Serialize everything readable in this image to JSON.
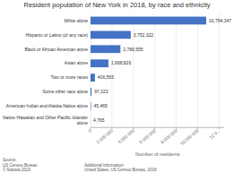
{
  "chart_data": {
    "type": "bar",
    "orientation": "horizontal",
    "title": "Resident population of New York in 2018, by race and ethnicity",
    "categories": [
      "Native Hawaiian and Other Pacific Islander\nalone",
      "American Indian and Alaska Native alone",
      "Some other race alone",
      "Two or more races",
      "Asian alone",
      "Black or African American alone",
      "Hispanic or Latino (of any race)",
      "White alone"
    ],
    "values": [
      4765,
      45465,
      97323,
      406555,
      1668826,
      2789555,
      3752322,
      10794347
    ],
    "value_labels": [
      "4,765",
      "45,465",
      "97,323",
      "406,555",
      "1,668,826",
      "2,789,555",
      "3,752,322",
      "10,794,347"
    ],
    "data_labels": true,
    "color": "#4472c4",
    "xlabel": "Number of residents",
    "xlim": [
      0,
      12500000
    ],
    "xticks": [
      0,
      {
        "value": 2000000,
        "label": "2 000 000"
      },
      {
        "value": 4000000,
        "label": "4 000 000"
      },
      {
        "value": 6000000,
        "label": "6 000 000"
      },
      {
        "value": 8000000,
        "label": "8 000 000"
      },
      {
        "value": 10000000,
        "label": "10 000 000"
      },
      {
        "value": 12000000,
        "label": "12 0..."
      }
    ],
    "grid": true,
    "annotations": [
      "Source:\nUS Census Bureau\n© Statista 2019",
      "Additional Information:\nUnited States, US Census Bureau, 2018"
    ]
  }
}
